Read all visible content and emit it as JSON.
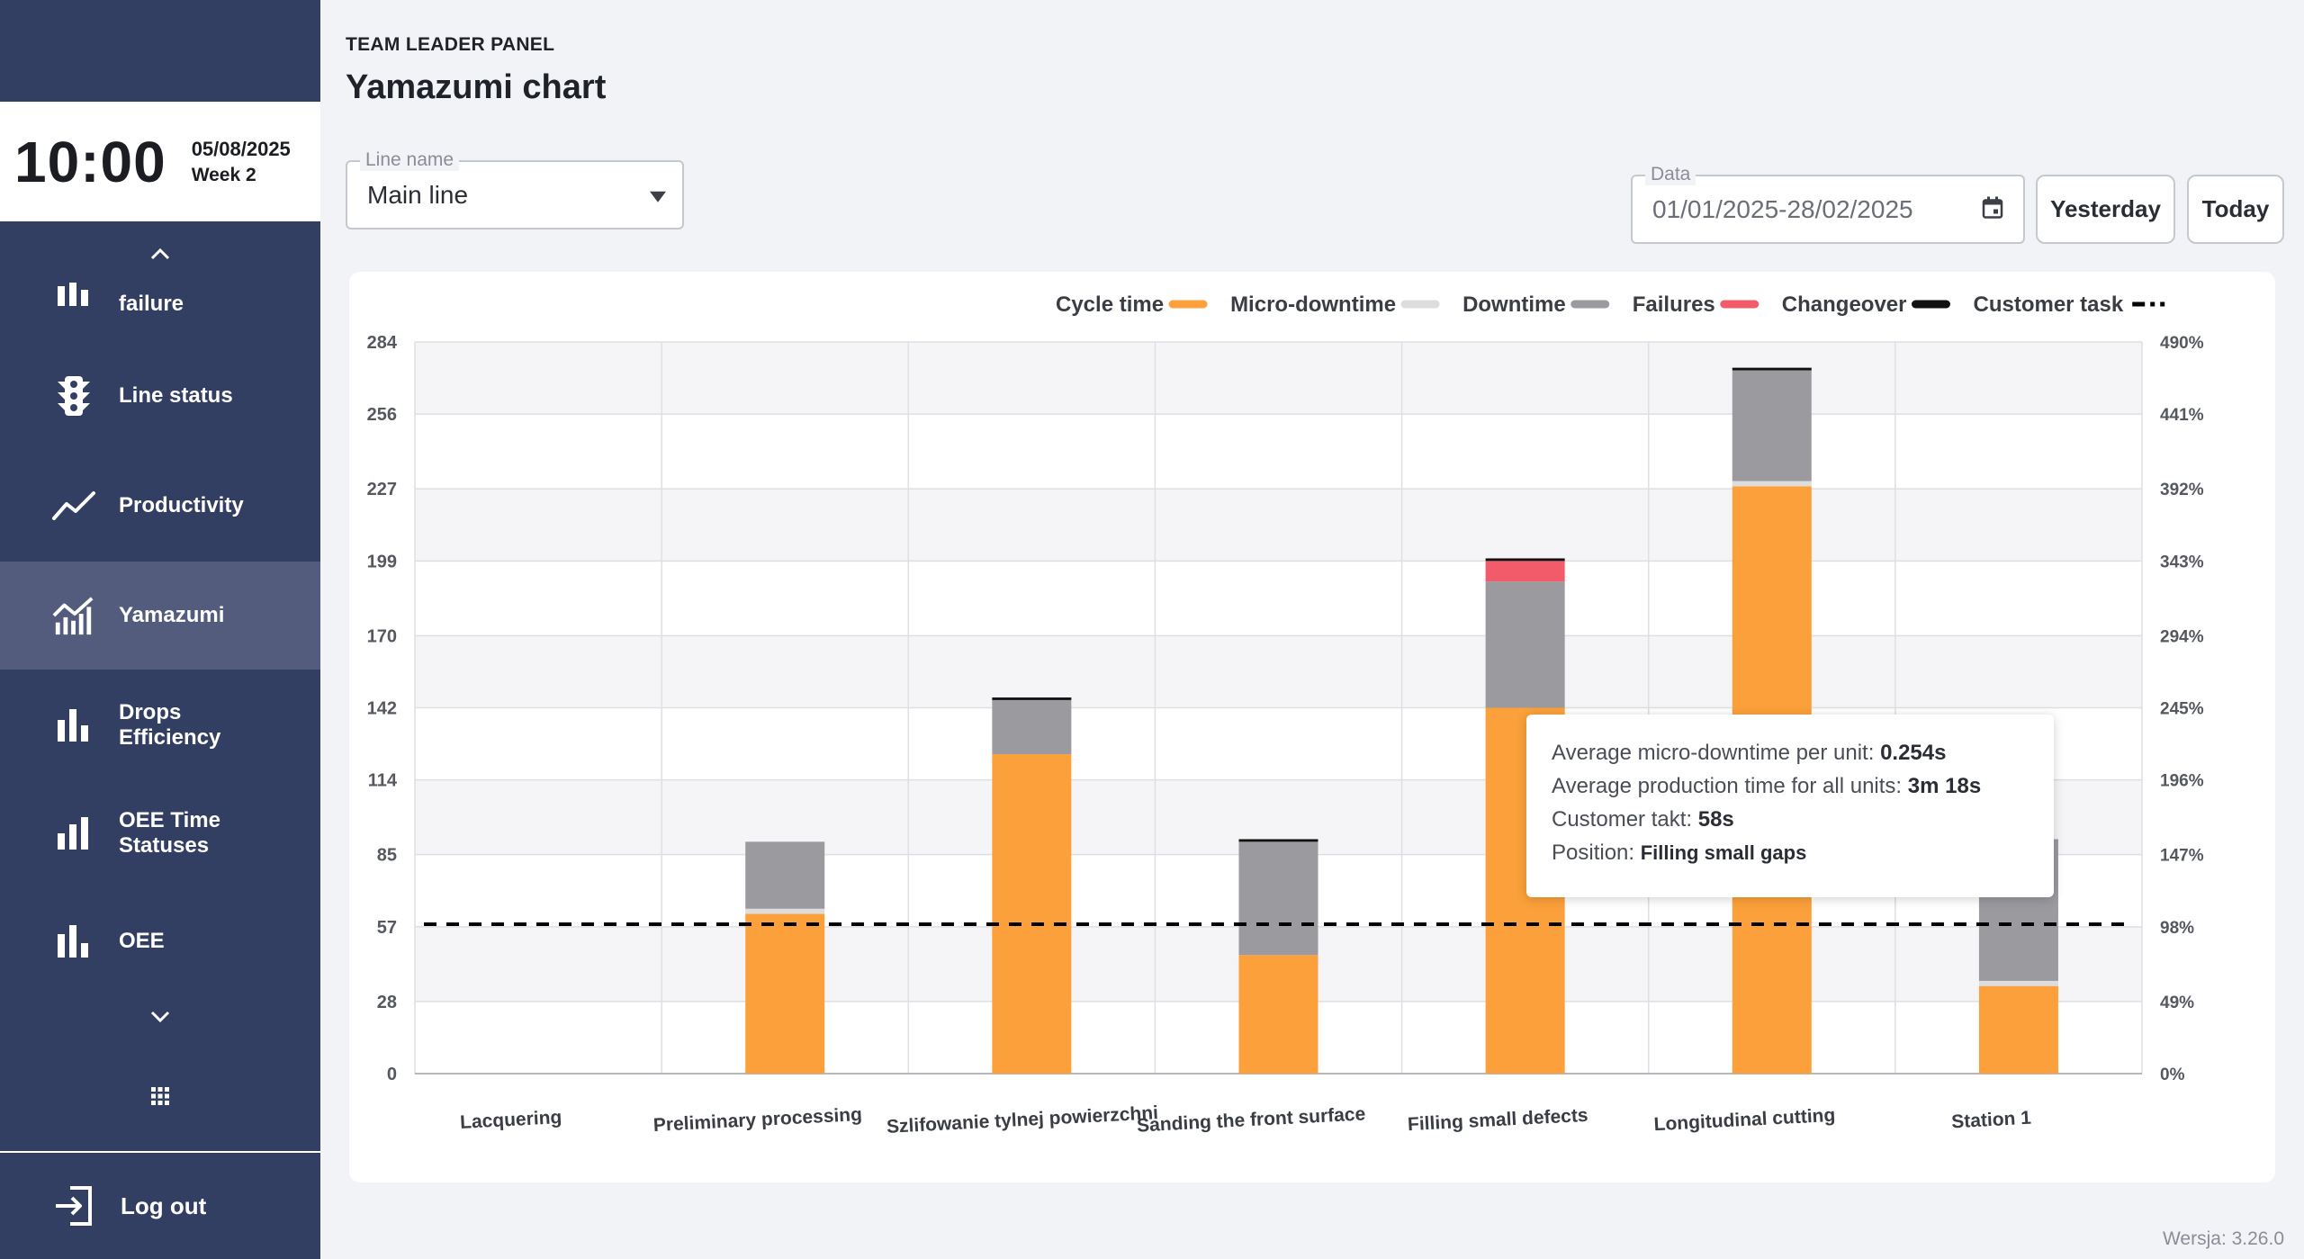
{
  "clock": {
    "time": "10:00",
    "date": "05/08/2025",
    "week": "Week 2"
  },
  "nav": {
    "items": [
      {
        "label": "failure",
        "icon": "bar-chart-icon"
      },
      {
        "label": "Line status",
        "icon": "traffic-light-icon"
      },
      {
        "label": "Productivity",
        "icon": "trend-line-icon"
      },
      {
        "label": "Yamazumi",
        "icon": "area-chart-icon",
        "active": true
      },
      {
        "label": "Drops\nEfficiency",
        "icon": "bar-chart-icon"
      },
      {
        "label": "OEE Time\nStatuses",
        "icon": "bar-chart-icon"
      },
      {
        "label": "OEE",
        "icon": "bar-chart-icon"
      }
    ],
    "logout_label": "Log out"
  },
  "header": {
    "panel_label": "TEAM LEADER PANEL",
    "title": "Yamazumi chart"
  },
  "filters": {
    "line_legend": "Line name",
    "line_value": "Main line",
    "date_legend": "Data",
    "date_value": "01/01/2025-28/02/2025",
    "yesterday_label": "Yesterday",
    "today_label": "Today"
  },
  "chart_data": {
    "type": "bar",
    "stacked": true,
    "categories": [
      "Lacquering",
      "Preliminary processing",
      "Szlifowanie tylnej powierzchni",
      "Sanding the front surface",
      "Filling small defects",
      "Longitudinal cutting",
      "Station 1"
    ],
    "series": [
      {
        "name": "Cycle time",
        "color": "#fba03a",
        "values": [
          0,
          62,
          124,
          46,
          142,
          228,
          34
        ]
      },
      {
        "name": "Micro-downtime",
        "color": "#dddddd",
        "values": [
          0,
          2,
          0,
          0,
          0,
          2,
          2
        ]
      },
      {
        "name": "Downtime",
        "color": "#9a9a9f",
        "values": [
          0,
          26,
          21,
          44,
          49,
          43,
          55
        ]
      },
      {
        "name": "Failures",
        "color": "#f25b6a",
        "values": [
          0,
          0,
          0,
          0,
          8,
          0,
          0
        ]
      },
      {
        "name": "Changeover",
        "color": "#111111",
        "values": [
          0,
          0,
          1,
          1,
          1,
          1,
          0
        ]
      }
    ],
    "customer_task": {
      "name": "Customer task",
      "value": 58
    },
    "y_ticks": [
      0,
      28,
      57,
      85,
      114,
      142,
      170,
      199,
      227,
      256,
      284
    ],
    "y2_ticks": [
      "0%",
      "49%",
      "98%",
      "147%",
      "196%",
      "245%",
      "294%",
      "343%",
      "392%",
      "441%",
      "490%"
    ],
    "ylim": [
      0,
      284
    ],
    "grid": true,
    "legend_position": "top-right"
  },
  "tooltip": {
    "rows": [
      {
        "label": "Average micro-downtime per unit: ",
        "value": "0.254s"
      },
      {
        "label": "Average production time for all units: ",
        "value": "3m 18s"
      },
      {
        "label": "Customer takt: ",
        "value": "58s"
      },
      {
        "label": "Position: ",
        "value": "Filling small gaps"
      }
    ]
  },
  "version": "Wersja: 3.26.0"
}
